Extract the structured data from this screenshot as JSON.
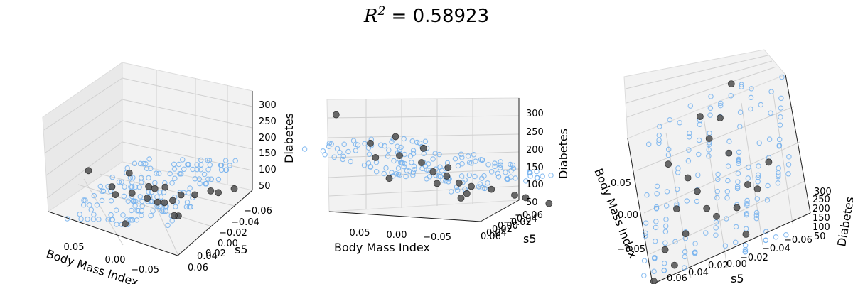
{
  "chart_data": {
    "type": "scatter",
    "title_main": "R",
    "title_sup": "2",
    "title_rest": " = 0.58923",
    "series": [
      {
        "name": "",
        "style": "hollow-circle",
        "color": "#77b3ef"
      },
      {
        "name": "",
        "style": "filled-circle",
        "color": "#505050"
      }
    ],
    "panels": [
      {
        "xlabel": "Body Mass Index",
        "ylabel": "s5",
        "zlabel": "Diabetes",
        "x_ticks": [
          "0.05",
          "0.00",
          "−0.05"
        ],
        "y_ticks": [
          "−0.06",
          "−0.04",
          "−0.02",
          "0.00",
          "0.02",
          "0.04",
          "0.06"
        ],
        "z_ticks": [
          "50",
          "100",
          "150",
          "200",
          "250",
          "300"
        ]
      },
      {
        "xlabel": "Body Mass Index",
        "ylabel": "s5",
        "zlabel": "Diabetes",
        "x_ticks": [
          "0.05",
          "0.00",
          "−0.05"
        ],
        "y_ticks": [
          "0.06",
          "0.04",
          "0.02",
          "0.00",
          "−0.02",
          "−0.04",
          "−0.06"
        ],
        "z_ticks": [
          "50",
          "100",
          "150",
          "200",
          "250",
          "300"
        ]
      },
      {
        "xlabel": "Body Mass Index",
        "ylabel": "s5",
        "zlabel": "Diabetes",
        "x_ticks": [
          "0.05",
          "0.00",
          "−0.05"
        ],
        "y_ticks": [
          "0.06",
          "0.04",
          "0.02",
          "0.00",
          "−0.02",
          "−0.04",
          "−0.06"
        ],
        "z_ticks": [
          "50",
          "100",
          "150",
          "200",
          "250",
          "300"
        ]
      }
    ],
    "test_points": [
      {
        "bmi": 0.09,
        "s5": -0.01,
        "y": 275
      },
      {
        "bmi": 0.06,
        "s5": 0.0,
        "y": 200
      },
      {
        "bmi": 0.07,
        "s5": 0.02,
        "y": 160
      },
      {
        "bmi": 0.04,
        "s5": 0.01,
        "y": 220
      },
      {
        "bmi": 0.02,
        "s5": -0.01,
        "y": 170
      },
      {
        "bmi": 0.01,
        "s5": 0.03,
        "y": 95
      },
      {
        "bmi": -0.01,
        "s5": 0.02,
        "y": 140
      },
      {
        "bmi": -0.02,
        "s5": -0.03,
        "y": 155
      },
      {
        "bmi": -0.02,
        "s5": 0.04,
        "y": 90
      },
      {
        "bmi": -0.03,
        "s5": 0.01,
        "y": 100
      },
      {
        "bmi": -0.04,
        "s5": -0.02,
        "y": 120
      },
      {
        "bmi": -0.05,
        "s5": 0.03,
        "y": 85
      },
      {
        "bmi": -0.03,
        "s5": -0.04,
        "y": 195
      },
      {
        "bmi": -0.06,
        "s5": 0.05,
        "y": 70
      },
      {
        "bmi": -0.07,
        "s5": -0.03,
        "y": 75
      },
      {
        "bmi": -0.09,
        "s5": 0.06,
        "y": 50
      },
      {
        "bmi": -0.08,
        "s5": 0.04,
        "y": 65
      },
      {
        "bmi": 0.0,
        "s5": -0.05,
        "y": 110
      },
      {
        "bmi": 0.03,
        "s5": 0.05,
        "y": 125
      },
      {
        "bmi": -0.04,
        "s5": 0.0,
        "y": 60
      }
    ]
  }
}
